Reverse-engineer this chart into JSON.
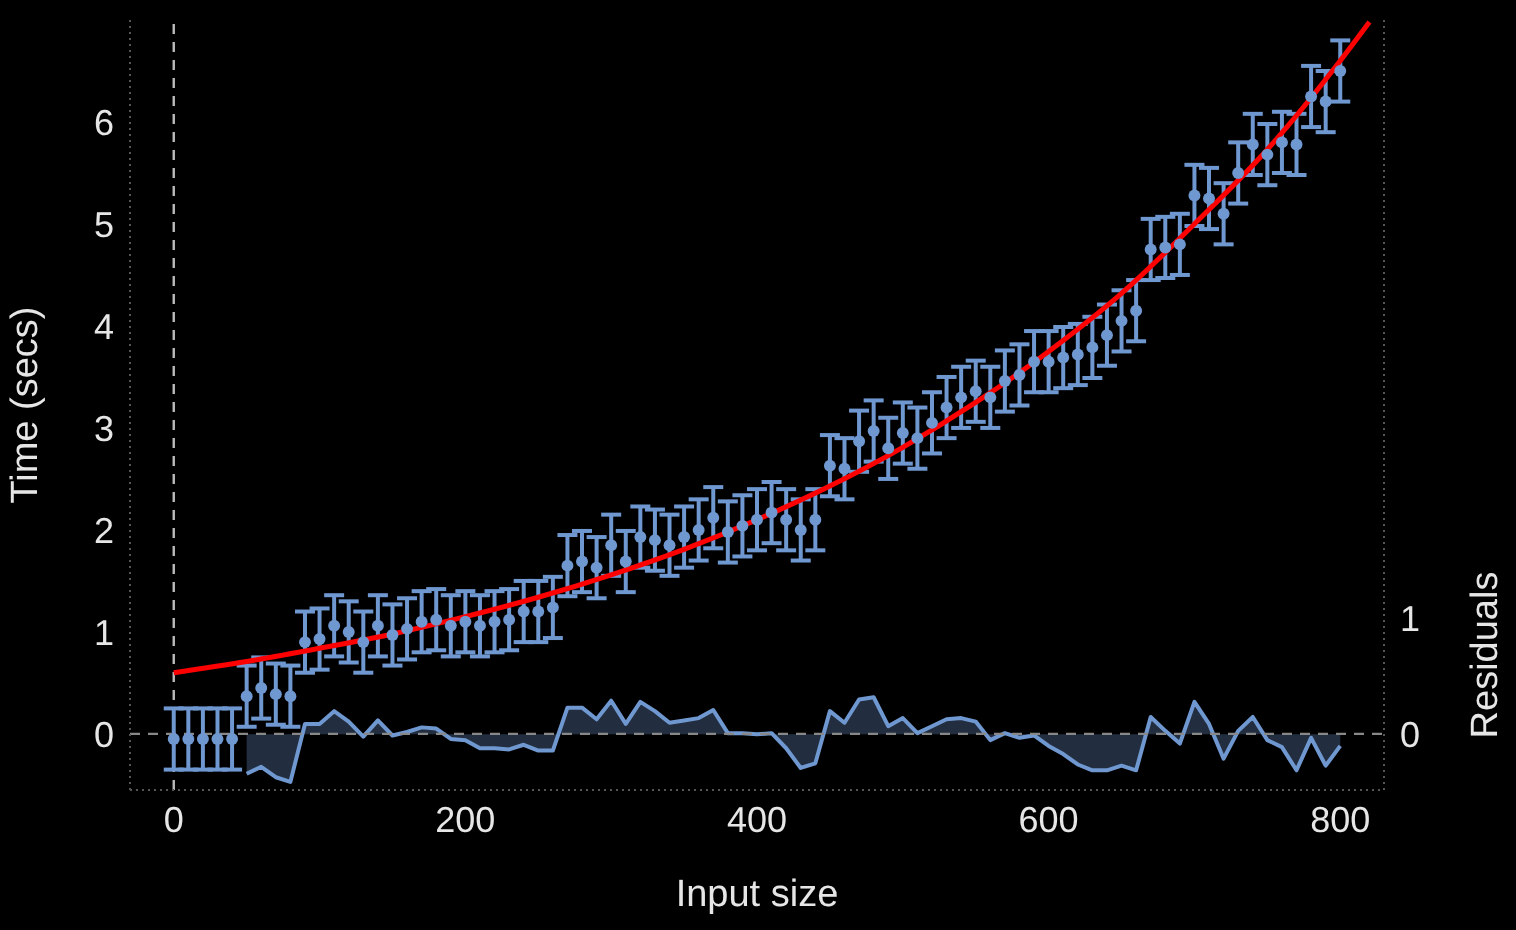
{
  "chart_data": {
    "type": "scatter",
    "xlabel": "Input size",
    "ylabel": "Time (secs)",
    "y2label": "Residuals",
    "xlim": [
      -30,
      830
    ],
    "xticks": [
      0,
      200,
      400,
      600,
      800
    ],
    "ylim": [
      -0.55,
      7
    ],
    "yticks": [
      0,
      1,
      2,
      3,
      4,
      5,
      6
    ],
    "y2lim": [
      -0.48,
      6.16
    ],
    "y2ticks": [
      0,
      1
    ],
    "grid": false,
    "legend": false,
    "marker": "circle",
    "ref_lines": [
      {
        "axis": "x",
        "value": 0,
        "color": "#bbbbbb",
        "line_style": "dashed"
      },
      {
        "axis": "y",
        "value": 0,
        "color": "#888888",
        "line_style": "dashed"
      }
    ],
    "series": [
      {
        "color": "#6f97d0",
        "x": [
          0,
          10,
          20,
          30,
          40,
          50,
          60,
          70,
          80,
          90,
          100,
          110,
          120,
          130,
          140,
          150,
          160,
          170,
          180,
          190,
          200,
          210,
          220,
          230,
          240,
          250,
          260,
          270,
          280,
          290,
          300,
          310,
          320,
          330,
          340,
          350,
          360,
          370,
          380,
          390,
          400,
          410,
          420,
          430,
          440,
          450,
          460,
          470,
          480,
          490,
          500,
          510,
          520,
          530,
          540,
          550,
          560,
          570,
          580,
          590,
          600,
          610,
          620,
          630,
          640,
          650,
          660,
          670,
          680,
          690,
          700,
          710,
          720,
          730,
          740,
          750,
          760,
          770,
          780,
          790,
          800
        ],
        "values": [
          -0.05,
          -0.05,
          -0.05,
          -0.05,
          -0.05,
          0.37,
          0.45,
          0.39,
          0.37,
          0.9,
          0.93,
          1.06,
          1.0,
          0.9,
          1.06,
          0.97,
          1.03,
          1.1,
          1.12,
          1.06,
          1.1,
          1.06,
          1.1,
          1.12,
          1.2,
          1.2,
          1.24,
          1.65,
          1.69,
          1.63,
          1.85,
          1.69,
          1.93,
          1.9,
          1.85,
          1.93,
          2.0,
          2.12,
          1.98,
          2.04,
          2.1,
          2.17,
          2.1,
          2.0,
          2.1,
          2.63,
          2.6,
          2.87,
          2.97,
          2.8,
          2.95,
          2.9,
          3.05,
          3.2,
          3.3,
          3.36,
          3.3,
          3.46,
          3.52,
          3.65,
          3.65,
          3.69,
          3.72,
          3.79,
          3.91,
          4.05,
          4.15,
          4.75,
          4.77,
          4.8,
          5.28,
          5.25,
          5.1,
          5.5,
          5.78,
          5.68,
          5.8,
          5.78,
          6.25,
          6.2,
          6.5
        ],
        "errors": [
          0.3,
          0.3,
          0.3,
          0.3,
          0.3,
          0.3,
          0.3,
          0.3,
          0.3,
          0.3,
          0.3,
          0.3,
          0.3,
          0.3,
          0.3,
          0.3,
          0.3,
          0.3,
          0.3,
          0.3,
          0.3,
          0.3,
          0.3,
          0.3,
          0.3,
          0.3,
          0.3,
          0.3,
          0.3,
          0.3,
          0.3,
          0.3,
          0.3,
          0.3,
          0.3,
          0.3,
          0.3,
          0.3,
          0.3,
          0.3,
          0.3,
          0.3,
          0.3,
          0.3,
          0.3,
          0.3,
          0.3,
          0.3,
          0.3,
          0.3,
          0.3,
          0.3,
          0.3,
          0.3,
          0.3,
          0.3,
          0.3,
          0.3,
          0.3,
          0.3,
          0.3,
          0.3,
          0.3,
          0.3,
          0.3,
          0.3,
          0.3,
          0.3,
          0.3,
          0.3,
          0.3,
          0.3,
          0.3,
          0.3,
          0.3,
          0.3,
          0.3,
          0.3,
          0.3,
          0.3,
          0.3
        ]
      },
      {
        "type": "line",
        "color": "#ff0000",
        "marker": "none",
        "x": [
          0,
          50,
          100,
          150,
          200,
          250,
          300,
          350,
          400,
          450,
          500,
          550,
          600,
          650,
          700,
          750,
          800,
          820
        ],
        "values": [
          0.6,
          0.71,
          0.84,
          0.98,
          1.15,
          1.34,
          1.56,
          1.81,
          2.1,
          2.43,
          2.81,
          3.25,
          3.75,
          4.32,
          5.0,
          5.73,
          6.6,
          6.98
        ]
      },
      {
        "type": "area",
        "axis": "y2",
        "color": "#6f97d0",
        "marker": "none",
        "x": [
          50,
          60,
          70,
          80,
          90,
          100,
          110,
          120,
          130,
          140,
          150,
          160,
          170,
          180,
          190,
          200,
          210,
          220,
          230,
          240,
          250,
          260,
          270,
          280,
          290,
          300,
          310,
          320,
          330,
          340,
          350,
          360,
          370,
          380,
          390,
          400,
          410,
          420,
          430,
          440,
          450,
          460,
          470,
          480,
          490,
          500,
          510,
          520,
          530,
          540,
          550,
          560,
          570,
          580,
          590,
          600,
          610,
          620,
          630,
          640,
          650,
          660,
          670,
          680,
          690,
          700,
          710,
          720,
          730,
          740,
          750,
          760,
          770,
          780,
          790,
          800
        ],
        "values": [
          -0.34,
          -0.28,
          -0.37,
          -0.41,
          0.09,
          0.09,
          0.2,
          0.11,
          -0.02,
          0.12,
          -0.01,
          0.02,
          0.06,
          0.05,
          -0.04,
          -0.05,
          -0.12,
          -0.12,
          -0.13,
          -0.09,
          -0.14,
          -0.14,
          0.23,
          0.23,
          0.13,
          0.29,
          0.09,
          0.28,
          0.2,
          0.1,
          0.12,
          0.14,
          0.21,
          0.01,
          0.01,
          0,
          0.01,
          -0.12,
          -0.29,
          -0.25,
          0.2,
          0.1,
          0.3,
          0.32,
          0.07,
          0.14,
          0.01,
          0.07,
          0.13,
          0.14,
          0.11,
          -0.05,
          0.01,
          -0.03,
          -0.01,
          -0.1,
          -0.17,
          -0.26,
          -0.31,
          -0.31,
          -0.27,
          -0.31,
          0.15,
          0.03,
          -0.08,
          0.28,
          0.09,
          -0.21,
          0.03,
          0.15,
          -0.05,
          -0.11,
          -0.31,
          -0.03,
          -0.27,
          -0.1
        ]
      }
    ]
  }
}
